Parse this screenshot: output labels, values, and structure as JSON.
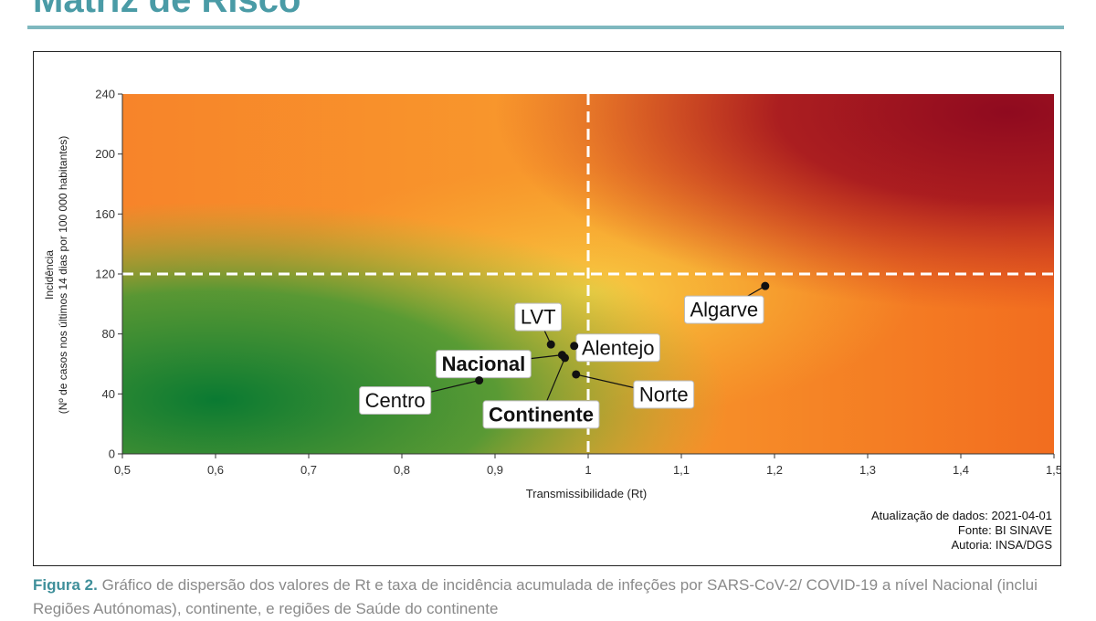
{
  "page": {
    "title": "Matriz de Risco",
    "caption_label": "Figura 2.",
    "caption_text": "Gráfico de dispersão dos valores de Rt e taxa de incidência acumulada de infeções por SARS-CoV-2/ COVID-19 a nível Nacional (inclui Regiões Autónomas), continente, e regiões de Saúde do continente"
  },
  "credits": {
    "update": "Atualização de dados: 2021-04-01",
    "source": "Fonte: BI SINAVE",
    "author": "Autoria: INSA/DGS"
  },
  "colors": {
    "accent": "#4a9ba6",
    "green": "#0a7a32",
    "yellow": "#f7c238",
    "orange": "#f77f20",
    "dark_red": "#8f0a1f"
  },
  "chart_data": {
    "type": "scatter",
    "xlabel": "Transmissibilidade (Rt)",
    "ylabel_line1": "Incidência",
    "ylabel_line2": "(Nº de casos nos últimos 14 dias por 100 000 habitantes)",
    "xlim": [
      0.5,
      1.5
    ],
    "ylim": [
      0,
      240
    ],
    "x_ticks": [
      "0,5",
      "0,6",
      "0,7",
      "0,8",
      "0,9",
      "1",
      "1,1",
      "1,2",
      "1,3",
      "1,4",
      "1,5"
    ],
    "x_tick_values": [
      0.5,
      0.6,
      0.7,
      0.8,
      0.9,
      1.0,
      1.1,
      1.2,
      1.3,
      1.4,
      1.5
    ],
    "y_ticks": [
      "0",
      "40",
      "80",
      "120",
      "160",
      "200",
      "240"
    ],
    "y_tick_values": [
      0,
      40,
      80,
      120,
      160,
      200,
      240
    ],
    "threshold_x": 1.0,
    "threshold_y": 120,
    "grid": false,
    "points": [
      {
        "name": "Algarve",
        "x": 1.19,
        "y": 112,
        "bold": false
      },
      {
        "name": "LVT",
        "x": 0.96,
        "y": 73,
        "bold": false
      },
      {
        "name": "Alentejo",
        "x": 0.985,
        "y": 72,
        "bold": false
      },
      {
        "name": "Nacional",
        "x": 0.972,
        "y": 66,
        "bold": true
      },
      {
        "name": "Continente",
        "x": 0.975,
        "y": 64,
        "bold": true
      },
      {
        "name": "Norte",
        "x": 0.987,
        "y": 53,
        "bold": false
      },
      {
        "name": "Centro",
        "x": 0.883,
        "y": 49,
        "bold": false
      }
    ]
  }
}
